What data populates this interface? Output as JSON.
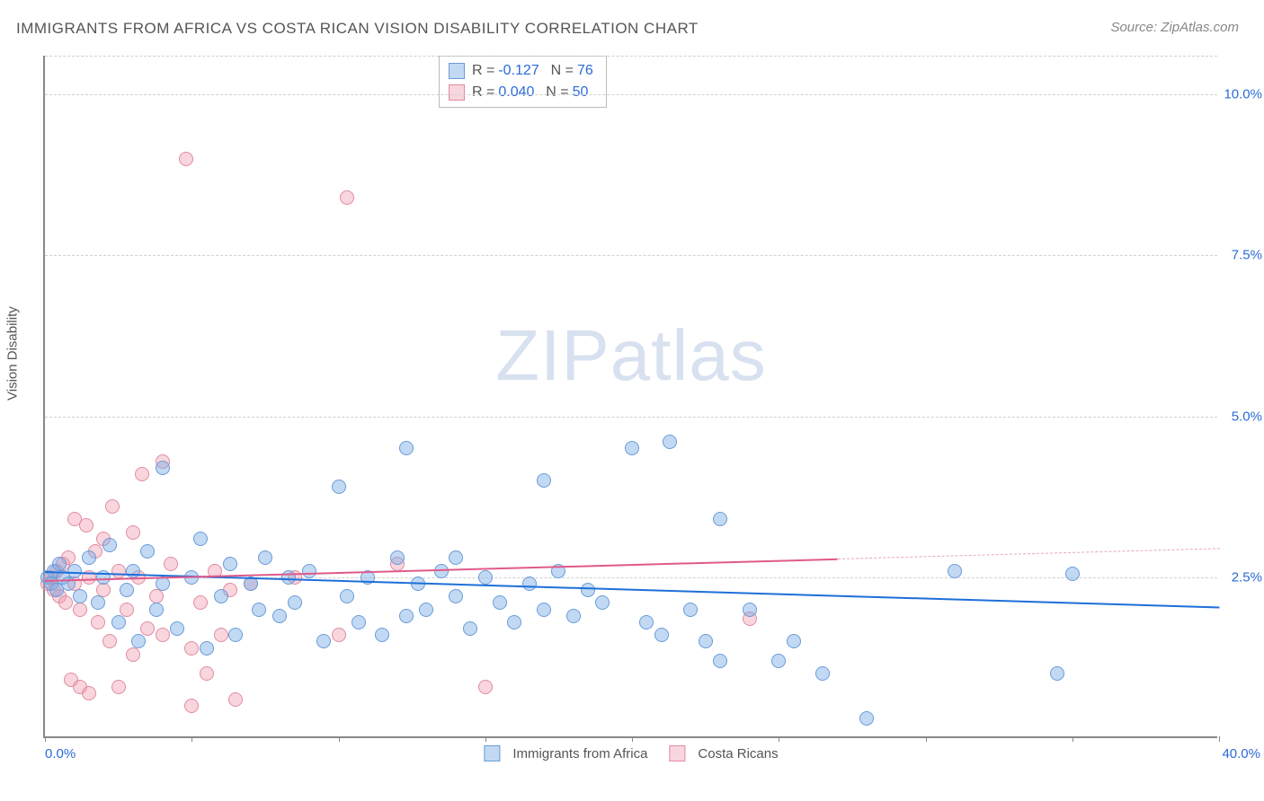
{
  "title": "IMMIGRANTS FROM AFRICA VS COSTA RICAN VISION DISABILITY CORRELATION CHART",
  "source": "Source: ZipAtlas.com",
  "ylabel": "Vision Disability",
  "watermark_zip": "ZIP",
  "watermark_atlas": "atlas",
  "chart": {
    "type": "scatter",
    "background_color": "#ffffff",
    "grid_color": "#d0d0d0",
    "axis_color": "#888888",
    "xlim": [
      0,
      40
    ],
    "ylim": [
      0,
      10.6
    ],
    "yticks": [
      {
        "value": 2.5,
        "label": "2.5%"
      },
      {
        "value": 5.0,
        "label": "5.0%"
      },
      {
        "value": 7.5,
        "label": "7.5%"
      },
      {
        "value": 10.0,
        "label": "10.0%"
      }
    ],
    "xtick_positions": [
      0,
      5,
      10,
      15,
      20,
      25,
      30,
      35,
      40
    ],
    "x_label_min": "0.0%",
    "x_label_max": "40.0%",
    "tick_label_color": "#2b6bd6",
    "series": [
      {
        "name": "Immigrants from Africa",
        "fill": "rgba(120,170,230,0.45)",
        "stroke": "#6a9bd8",
        "trend_color": "#1e6fd9",
        "trend_dash_color": "#6a9bd8",
        "marker_size": 16,
        "R_label": "R =",
        "R": "-0.127",
        "N_label": "N =",
        "N": "76",
        "trend": {
          "x1": 0,
          "y1": 2.6,
          "x2": 40,
          "y2": 2.05
        },
        "trend_solid_until": 40,
        "points": [
          [
            0.1,
            2.5
          ],
          [
            0.2,
            2.4
          ],
          [
            0.3,
            2.6
          ],
          [
            0.4,
            2.3
          ],
          [
            0.5,
            2.7
          ],
          [
            0.6,
            2.5
          ],
          [
            0.8,
            2.4
          ],
          [
            1.0,
            2.6
          ],
          [
            1.2,
            2.2
          ],
          [
            1.5,
            2.8
          ],
          [
            1.8,
            2.1
          ],
          [
            2.0,
            2.5
          ],
          [
            2.2,
            3.0
          ],
          [
            2.5,
            1.8
          ],
          [
            2.8,
            2.3
          ],
          [
            3.0,
            2.6
          ],
          [
            3.2,
            1.5
          ],
          [
            3.5,
            2.9
          ],
          [
            3.8,
            2.0
          ],
          [
            4.0,
            2.4
          ],
          [
            4.0,
            4.2
          ],
          [
            4.5,
            1.7
          ],
          [
            5.0,
            2.5
          ],
          [
            5.3,
            3.1
          ],
          [
            5.5,
            1.4
          ],
          [
            6.0,
            2.2
          ],
          [
            6.3,
            2.7
          ],
          [
            6.5,
            1.6
          ],
          [
            7.0,
            2.4
          ],
          [
            7.3,
            2.0
          ],
          [
            7.5,
            2.8
          ],
          [
            8.0,
            1.9
          ],
          [
            8.3,
            2.5
          ],
          [
            8.5,
            2.1
          ],
          [
            9.0,
            2.6
          ],
          [
            9.5,
            1.5
          ],
          [
            10.0,
            3.9
          ],
          [
            10.3,
            2.2
          ],
          [
            10.7,
            1.8
          ],
          [
            11.0,
            2.5
          ],
          [
            11.5,
            1.6
          ],
          [
            12.0,
            2.8
          ],
          [
            12.3,
            1.9
          ],
          [
            12.3,
            4.5
          ],
          [
            12.7,
            2.4
          ],
          [
            13.0,
            2.0
          ],
          [
            13.5,
            2.6
          ],
          [
            14.0,
            2.2
          ],
          [
            14.0,
            2.8
          ],
          [
            14.5,
            1.7
          ],
          [
            15.0,
            2.5
          ],
          [
            15.5,
            2.1
          ],
          [
            16.0,
            1.8
          ],
          [
            16.5,
            2.4
          ],
          [
            17.0,
            2.0
          ],
          [
            17.0,
            4.0
          ],
          [
            17.5,
            2.6
          ],
          [
            18.0,
            1.9
          ],
          [
            18.5,
            2.3
          ],
          [
            19.0,
            2.1
          ],
          [
            20.0,
            4.5
          ],
          [
            20.5,
            1.8
          ],
          [
            21.0,
            1.6
          ],
          [
            21.3,
            4.6
          ],
          [
            22.0,
            2.0
          ],
          [
            22.5,
            1.5
          ],
          [
            23.0,
            1.2
          ],
          [
            23.0,
            3.4
          ],
          [
            24.0,
            2.0
          ],
          [
            25.0,
            1.2
          ],
          [
            25.5,
            1.5
          ],
          [
            26.5,
            1.0
          ],
          [
            28.0,
            0.3
          ],
          [
            31.0,
            2.6
          ],
          [
            34.5,
            1.0
          ],
          [
            35.0,
            2.55
          ]
        ]
      },
      {
        "name": "Costa Ricans",
        "fill": "rgba(240,150,170,0.40)",
        "stroke": "#e08ca0",
        "trend_color": "#e05a8a",
        "trend_dash_color": "#e8a8b8",
        "marker_size": 16,
        "R_label": "R =",
        "R": "0.040",
        "N_label": "N =",
        "N": "50",
        "trend": {
          "x1": 0,
          "y1": 2.45,
          "x2": 40,
          "y2": 2.95
        },
        "trend_solid_until": 27,
        "points": [
          [
            0.1,
            2.4
          ],
          [
            0.2,
            2.5
          ],
          [
            0.3,
            2.3
          ],
          [
            0.4,
            2.6
          ],
          [
            0.5,
            2.2
          ],
          [
            0.6,
            2.7
          ],
          [
            0.7,
            2.1
          ],
          [
            0.8,
            2.8
          ],
          [
            0.9,
            0.9
          ],
          [
            1.0,
            2.4
          ],
          [
            1.0,
            3.4
          ],
          [
            1.2,
            0.8
          ],
          [
            1.2,
            2.0
          ],
          [
            1.4,
            3.3
          ],
          [
            1.5,
            2.5
          ],
          [
            1.5,
            0.7
          ],
          [
            1.7,
            2.9
          ],
          [
            1.8,
            1.8
          ],
          [
            2.0,
            3.1
          ],
          [
            2.0,
            2.3
          ],
          [
            2.2,
            1.5
          ],
          [
            2.3,
            3.6
          ],
          [
            2.5,
            2.6
          ],
          [
            2.5,
            0.8
          ],
          [
            2.8,
            2.0
          ],
          [
            3.0,
            1.3
          ],
          [
            3.0,
            3.2
          ],
          [
            3.2,
            2.5
          ],
          [
            3.3,
            4.1
          ],
          [
            3.5,
            1.7
          ],
          [
            3.8,
            2.2
          ],
          [
            4.0,
            4.3
          ],
          [
            4.0,
            1.6
          ],
          [
            4.3,
            2.7
          ],
          [
            4.8,
            9.0
          ],
          [
            5.0,
            1.4
          ],
          [
            5.0,
            0.5
          ],
          [
            5.3,
            2.1
          ],
          [
            5.5,
            1.0
          ],
          [
            5.8,
            2.6
          ],
          [
            6.0,
            1.6
          ],
          [
            6.3,
            2.3
          ],
          [
            6.5,
            0.6
          ],
          [
            7.0,
            2.4
          ],
          [
            8.5,
            2.5
          ],
          [
            10.0,
            1.6
          ],
          [
            10.3,
            8.4
          ],
          [
            12.0,
            2.7
          ],
          [
            15.0,
            0.8
          ],
          [
            24.0,
            1.85
          ]
        ]
      }
    ]
  }
}
